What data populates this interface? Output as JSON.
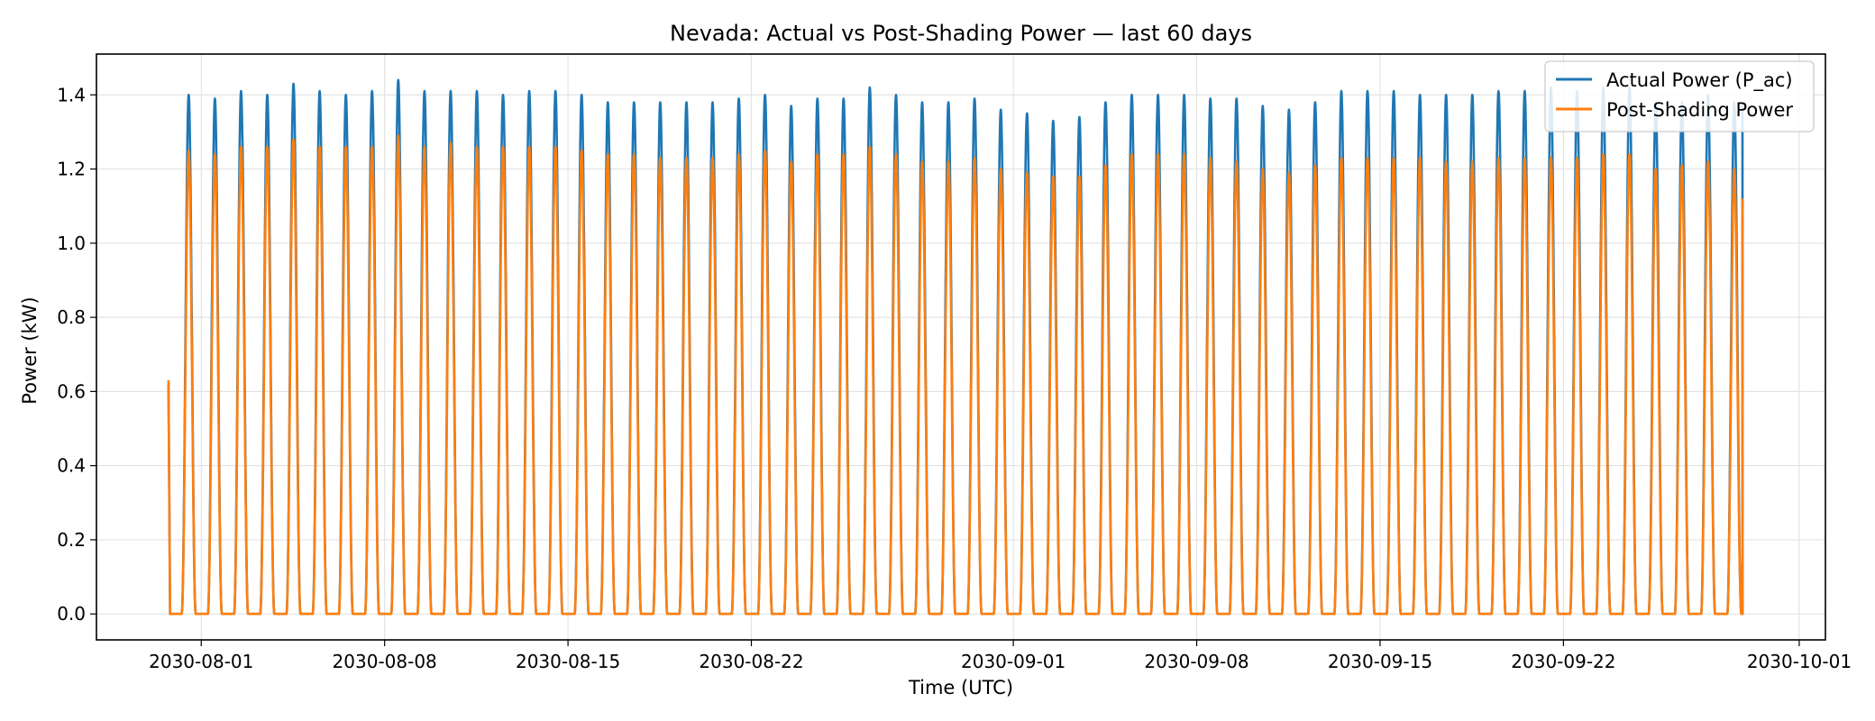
{
  "chart_data": {
    "type": "line",
    "title": "Nevada: Actual vs Post-Shading Power — last 60 days",
    "xlabel": "Time (UTC)",
    "ylabel": "Power (kW)",
    "xlim": [
      "2030-07-28",
      "2030-10-02"
    ],
    "ylim": [
      -0.07,
      1.51
    ],
    "x_ticks": [
      "2030-08-01",
      "2030-08-08",
      "2030-08-15",
      "2030-08-22",
      "2030-09-01",
      "2030-09-08",
      "2030-09-15",
      "2030-09-22",
      "2030-10-01"
    ],
    "y_ticks": [
      "0.0",
      "0.2",
      "0.4",
      "0.6",
      "0.8",
      "1.0",
      "1.2",
      "1.4"
    ],
    "grid": true,
    "legend_position": "top-right",
    "data_start": "2030-07-30T18:00",
    "data_end": "2030-09-28T20:00",
    "daily_peak_dates": [
      "2030-07-31",
      "2030-08-01",
      "2030-08-02",
      "2030-08-03",
      "2030-08-04",
      "2030-08-05",
      "2030-08-06",
      "2030-08-07",
      "2030-08-08",
      "2030-08-09",
      "2030-08-10",
      "2030-08-11",
      "2030-08-12",
      "2030-08-13",
      "2030-08-14",
      "2030-08-15",
      "2030-08-16",
      "2030-08-17",
      "2030-08-18",
      "2030-08-19",
      "2030-08-20",
      "2030-08-21",
      "2030-08-22",
      "2030-08-23",
      "2030-08-24",
      "2030-08-25",
      "2030-08-26",
      "2030-08-27",
      "2030-08-28",
      "2030-08-29",
      "2030-08-30",
      "2030-08-31",
      "2030-09-01",
      "2030-09-02",
      "2030-09-03",
      "2030-09-04",
      "2030-09-05",
      "2030-09-06",
      "2030-09-07",
      "2030-09-08",
      "2030-09-09",
      "2030-09-10",
      "2030-09-11",
      "2030-09-12",
      "2030-09-13",
      "2030-09-14",
      "2030-09-15",
      "2030-09-16",
      "2030-09-17",
      "2030-09-18",
      "2030-09-19",
      "2030-09-20",
      "2030-09-21",
      "2030-09-22",
      "2030-09-23",
      "2030-09-24",
      "2030-09-25",
      "2030-09-26",
      "2030-09-27",
      "2030-09-28"
    ],
    "series": [
      {
        "name": "Actual Power (P_ac)",
        "color": "#1f77b4",
        "start_value": 0.62,
        "end_value": 1.38,
        "daily_peaks": [
          1.4,
          1.39,
          1.41,
          1.4,
          1.43,
          1.41,
          1.4,
          1.41,
          1.44,
          1.41,
          1.41,
          1.41,
          1.4,
          1.41,
          1.41,
          1.4,
          1.38,
          1.38,
          1.38,
          1.38,
          1.38,
          1.39,
          1.4,
          1.37,
          1.39,
          1.39,
          1.42,
          1.4,
          1.38,
          1.38,
          1.39,
          1.36,
          1.35,
          1.33,
          1.34,
          1.38,
          1.4,
          1.4,
          1.4,
          1.39,
          1.39,
          1.37,
          1.36,
          1.38,
          1.41,
          1.41,
          1.41,
          1.4,
          1.4,
          1.4,
          1.41,
          1.41,
          1.42,
          1.41,
          1.42,
          1.42,
          1.38,
          1.38,
          1.4,
          1.38
        ]
      },
      {
        "name": "Post-Shading Power",
        "color": "#ff7f0e",
        "start_value": 0.63,
        "end_value": 1.12,
        "daily_peaks": [
          1.25,
          1.24,
          1.26,
          1.26,
          1.28,
          1.26,
          1.26,
          1.26,
          1.29,
          1.26,
          1.27,
          1.26,
          1.26,
          1.26,
          1.26,
          1.25,
          1.24,
          1.24,
          1.23,
          1.23,
          1.23,
          1.24,
          1.25,
          1.22,
          1.24,
          1.24,
          1.26,
          1.24,
          1.22,
          1.22,
          1.23,
          1.2,
          1.19,
          1.18,
          1.18,
          1.21,
          1.24,
          1.24,
          1.24,
          1.23,
          1.22,
          1.2,
          1.19,
          1.21,
          1.23,
          1.23,
          1.23,
          1.23,
          1.22,
          1.22,
          1.23,
          1.23,
          1.23,
          1.23,
          1.24,
          1.24,
          1.2,
          1.21,
          1.22,
          1.2
        ]
      }
    ]
  }
}
